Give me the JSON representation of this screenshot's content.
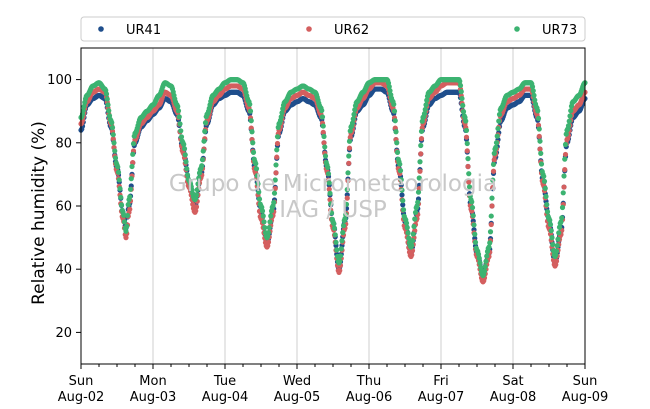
{
  "chart_data": {
    "type": "scatter",
    "title": "",
    "xlabel": "",
    "ylabel": "Relative humidity (%)",
    "ylim": [
      10,
      110
    ],
    "yticks": [
      20,
      40,
      60,
      80,
      100
    ],
    "xlim": [
      "2015-08-02 00:00",
      "2015-08-09 00:00"
    ],
    "xticks": [
      {
        "day": "Sun",
        "date": "Aug-02"
      },
      {
        "day": "Mon",
        "date": "Aug-03"
      },
      {
        "day": "Tue",
        "date": "Aug-04"
      },
      {
        "day": "Wed",
        "date": "Aug-05"
      },
      {
        "day": "Thu",
        "date": "Aug-06"
      },
      {
        "day": "Fri",
        "date": "Aug-07"
      },
      {
        "day": "Sat",
        "date": "Aug-08"
      },
      {
        "day": "Sun",
        "date": "Aug-09"
      }
    ],
    "grid": "vertical",
    "legend_position": "top",
    "watermark": [
      "Grupo de Micrometeorologia",
      "IAG / USP"
    ],
    "series": [
      {
        "name": "UR41",
        "color": "#1f4e8c",
        "points": [
          [
            "2015-08-02 00:00",
            84
          ],
          [
            "2015-08-02 02:00",
            92
          ],
          [
            "2015-08-02 04:00",
            94
          ],
          [
            "2015-08-02 06:00",
            95
          ],
          [
            "2015-08-02 08:00",
            94
          ],
          [
            "2015-08-02 10:00",
            85
          ],
          [
            "2015-08-02 12:00",
            72
          ],
          [
            "2015-08-02 14:00",
            58
          ],
          [
            "2015-08-02 15:00",
            53
          ],
          [
            "2015-08-02 16:00",
            60
          ],
          [
            "2015-08-02 18:00",
            80
          ],
          [
            "2015-08-02 20:00",
            85
          ],
          [
            "2015-08-02 22:00",
            87
          ],
          [
            "2015-08-03 00:00",
            89
          ],
          [
            "2015-08-03 02:00",
            91
          ],
          [
            "2015-08-03 04:00",
            94
          ],
          [
            "2015-08-03 06:00",
            93
          ],
          [
            "2015-08-03 08:00",
            89
          ],
          [
            "2015-08-03 10:00",
            78
          ],
          [
            "2015-08-03 12:00",
            68
          ],
          [
            "2015-08-03 14:00",
            60
          ],
          [
            "2015-08-03 16:00",
            70
          ],
          [
            "2015-08-03 18:00",
            86
          ],
          [
            "2015-08-03 20:00",
            92
          ],
          [
            "2015-08-03 22:00",
            94
          ],
          [
            "2015-08-04 00:00",
            95
          ],
          [
            "2015-08-04 02:00",
            96
          ],
          [
            "2015-08-04 04:00",
            96
          ],
          [
            "2015-08-04 06:00",
            95
          ],
          [
            "2015-08-04 08:00",
            90
          ],
          [
            "2015-08-04 10:00",
            72
          ],
          [
            "2015-08-04 12:00",
            58
          ],
          [
            "2015-08-04 14:00",
            48
          ],
          [
            "2015-08-04 16:00",
            58
          ],
          [
            "2015-08-04 18:00",
            83
          ],
          [
            "2015-08-04 20:00",
            90
          ],
          [
            "2015-08-04 22:00",
            92
          ],
          [
            "2015-08-05 00:00",
            93
          ],
          [
            "2015-08-05 02:00",
            94
          ],
          [
            "2015-08-05 04:00",
            93
          ],
          [
            "2015-08-05 06:00",
            92
          ],
          [
            "2015-08-05 08:00",
            88
          ],
          [
            "2015-08-05 10:00",
            72
          ],
          [
            "2015-08-05 12:00",
            55
          ],
          [
            "2015-08-05 14:00",
            40
          ],
          [
            "2015-08-05 16:00",
            55
          ],
          [
            "2015-08-05 18:00",
            82
          ],
          [
            "2015-08-05 20:00",
            90
          ],
          [
            "2015-08-05 22:00",
            92
          ],
          [
            "2015-08-06 00:00",
            95
          ],
          [
            "2015-08-06 02:00",
            97
          ],
          [
            "2015-08-06 04:00",
            97
          ],
          [
            "2015-08-06 06:00",
            96
          ],
          [
            "2015-08-06 08:00",
            90
          ],
          [
            "2015-08-06 10:00",
            72
          ],
          [
            "2015-08-06 12:00",
            55
          ],
          [
            "2015-08-06 14:00",
            45
          ],
          [
            "2015-08-06 16:00",
            58
          ],
          [
            "2015-08-06 18:00",
            85
          ],
          [
            "2015-08-06 20:00",
            92
          ],
          [
            "2015-08-06 22:00",
            94
          ],
          [
            "2015-08-07 00:00",
            95
          ],
          [
            "2015-08-07 02:00",
            96
          ],
          [
            "2015-08-07 04:00",
            96
          ],
          [
            "2015-08-07 06:00",
            96
          ],
          [
            "2015-08-07 08:00",
            85
          ],
          [
            "2015-08-07 10:00",
            60
          ],
          [
            "2015-08-07 12:00",
            45
          ],
          [
            "2015-08-07 14:00",
            38
          ],
          [
            "2015-08-07 16:00",
            45
          ],
          [
            "2015-08-07 18:00",
            75
          ],
          [
            "2015-08-07 20:00",
            87
          ],
          [
            "2015-08-07 22:00",
            91
          ],
          [
            "2015-08-08 00:00",
            92
          ],
          [
            "2015-08-08 02:00",
            93
          ],
          [
            "2015-08-08 04:00",
            95
          ],
          [
            "2015-08-08 06:00",
            95
          ],
          [
            "2015-08-08 08:00",
            88
          ],
          [
            "2015-08-08 10:00",
            68
          ],
          [
            "2015-08-08 12:00",
            55
          ],
          [
            "2015-08-08 14:00",
            42
          ],
          [
            "2015-08-08 16:00",
            52
          ],
          [
            "2015-08-08 18:00",
            80
          ],
          [
            "2015-08-08 20:00",
            88
          ],
          [
            "2015-08-08 22:00",
            90
          ],
          [
            "2015-08-09 00:00",
            94
          ]
        ]
      },
      {
        "name": "UR62",
        "color": "#d45f5f",
        "points": [
          [
            "2015-08-02 00:00",
            86
          ],
          [
            "2015-08-02 02:00",
            93
          ],
          [
            "2015-08-02 04:00",
            96
          ],
          [
            "2015-08-02 06:00",
            97
          ],
          [
            "2015-08-02 08:00",
            96
          ],
          [
            "2015-08-02 10:00",
            86
          ],
          [
            "2015-08-02 12:00",
            71
          ],
          [
            "2015-08-02 14:00",
            56
          ],
          [
            "2015-08-02 15:00",
            50
          ],
          [
            "2015-08-02 16:00",
            58
          ],
          [
            "2015-08-02 18:00",
            81
          ],
          [
            "2015-08-02 20:00",
            86
          ],
          [
            "2015-08-02 22:00",
            88
          ],
          [
            "2015-08-03 00:00",
            90
          ],
          [
            "2015-08-03 02:00",
            92
          ],
          [
            "2015-08-03 04:00",
            96
          ],
          [
            "2015-08-03 06:00",
            95
          ],
          [
            "2015-08-03 08:00",
            90
          ],
          [
            "2015-08-03 10:00",
            77
          ],
          [
            "2015-08-03 12:00",
            66
          ],
          [
            "2015-08-03 14:00",
            58
          ],
          [
            "2015-08-03 16:00",
            69
          ],
          [
            "2015-08-03 18:00",
            87
          ],
          [
            "2015-08-03 20:00",
            93
          ],
          [
            "2015-08-03 22:00",
            95
          ],
          [
            "2015-08-04 00:00",
            97
          ],
          [
            "2015-08-04 02:00",
            98
          ],
          [
            "2015-08-04 04:00",
            98
          ],
          [
            "2015-08-04 06:00",
            97
          ],
          [
            "2015-08-04 08:00",
            91
          ],
          [
            "2015-08-04 10:00",
            71
          ],
          [
            "2015-08-04 12:00",
            56
          ],
          [
            "2015-08-04 14:00",
            47
          ],
          [
            "2015-08-04 16:00",
            57
          ],
          [
            "2015-08-04 18:00",
            84
          ],
          [
            "2015-08-04 20:00",
            91
          ],
          [
            "2015-08-04 22:00",
            94
          ],
          [
            "2015-08-05 00:00",
            95
          ],
          [
            "2015-08-05 02:00",
            96
          ],
          [
            "2015-08-05 04:00",
            95
          ],
          [
            "2015-08-05 06:00",
            94
          ],
          [
            "2015-08-05 08:00",
            89
          ],
          [
            "2015-08-05 10:00",
            71
          ],
          [
            "2015-08-05 12:00",
            53
          ],
          [
            "2015-08-05 14:00",
            39
          ],
          [
            "2015-08-05 16:00",
            53
          ],
          [
            "2015-08-05 18:00",
            83
          ],
          [
            "2015-08-05 20:00",
            91
          ],
          [
            "2015-08-05 22:00",
            94
          ],
          [
            "2015-08-06 00:00",
            97
          ],
          [
            "2015-08-06 02:00",
            99
          ],
          [
            "2015-08-06 04:00",
            99
          ],
          [
            "2015-08-06 06:00",
            98
          ],
          [
            "2015-08-06 08:00",
            91
          ],
          [
            "2015-08-06 10:00",
            71
          ],
          [
            "2015-08-06 12:00",
            53
          ],
          [
            "2015-08-06 14:00",
            44
          ],
          [
            "2015-08-06 16:00",
            56
          ],
          [
            "2015-08-06 18:00",
            86
          ],
          [
            "2015-08-06 20:00",
            94
          ],
          [
            "2015-08-06 22:00",
            96
          ],
          [
            "2015-08-07 00:00",
            98
          ],
          [
            "2015-08-07 02:00",
            99
          ],
          [
            "2015-08-07 04:00",
            99
          ],
          [
            "2015-08-07 06:00",
            99
          ],
          [
            "2015-08-07 08:00",
            86
          ],
          [
            "2015-08-07 10:00",
            59
          ],
          [
            "2015-08-07 12:00",
            44
          ],
          [
            "2015-08-07 14:00",
            36
          ],
          [
            "2015-08-07 16:00",
            44
          ],
          [
            "2015-08-07 18:00",
            76
          ],
          [
            "2015-08-07 20:00",
            89
          ],
          [
            "2015-08-07 22:00",
            93
          ],
          [
            "2015-08-08 00:00",
            94
          ],
          [
            "2015-08-08 02:00",
            95
          ],
          [
            "2015-08-08 04:00",
            97
          ],
          [
            "2015-08-08 06:00",
            97
          ],
          [
            "2015-08-08 08:00",
            89
          ],
          [
            "2015-08-08 10:00",
            67
          ],
          [
            "2015-08-08 12:00",
            53
          ],
          [
            "2015-08-08 14:00",
            41
          ],
          [
            "2015-08-08 16:00",
            51
          ],
          [
            "2015-08-08 18:00",
            81
          ],
          [
            "2015-08-08 20:00",
            90
          ],
          [
            "2015-08-08 22:00",
            92
          ],
          [
            "2015-08-09 00:00",
            96
          ]
        ]
      },
      {
        "name": "UR73",
        "color": "#3cb371",
        "points": [
          [
            "2015-08-02 00:00",
            88
          ],
          [
            "2015-08-02 02:00",
            95
          ],
          [
            "2015-08-02 04:00",
            98
          ],
          [
            "2015-08-02 06:00",
            99
          ],
          [
            "2015-08-02 08:00",
            97
          ],
          [
            "2015-08-02 10:00",
            87
          ],
          [
            "2015-08-02 12:00",
            73
          ],
          [
            "2015-08-02 14:00",
            58
          ],
          [
            "2015-08-02 15:00",
            52
          ],
          [
            "2015-08-02 16:00",
            62
          ],
          [
            "2015-08-02 18:00",
            83
          ],
          [
            "2015-08-02 20:00",
            88
          ],
          [
            "2015-08-02 22:00",
            90
          ],
          [
            "2015-08-03 00:00",
            92
          ],
          [
            "2015-08-03 02:00",
            95
          ],
          [
            "2015-08-03 04:00",
            99
          ],
          [
            "2015-08-03 06:00",
            98
          ],
          [
            "2015-08-03 08:00",
            92
          ],
          [
            "2015-08-03 10:00",
            80
          ],
          [
            "2015-08-03 12:00",
            68
          ],
          [
            "2015-08-03 14:00",
            62
          ],
          [
            "2015-08-03 16:00",
            72
          ],
          [
            "2015-08-03 18:00",
            89
          ],
          [
            "2015-08-03 20:00",
            95
          ],
          [
            "2015-08-03 22:00",
            97
          ],
          [
            "2015-08-04 00:00",
            99
          ],
          [
            "2015-08-04 02:00",
            100
          ],
          [
            "2015-08-04 04:00",
            100
          ],
          [
            "2015-08-04 06:00",
            99
          ],
          [
            "2015-08-04 08:00",
            93
          ],
          [
            "2015-08-04 10:00",
            74
          ],
          [
            "2015-08-04 12:00",
            60
          ],
          [
            "2015-08-04 14:00",
            50
          ],
          [
            "2015-08-04 16:00",
            60
          ],
          [
            "2015-08-04 18:00",
            86
          ],
          [
            "2015-08-04 20:00",
            93
          ],
          [
            "2015-08-04 22:00",
            96
          ],
          [
            "2015-08-05 00:00",
            97
          ],
          [
            "2015-08-05 02:00",
            98
          ],
          [
            "2015-08-05 04:00",
            97
          ],
          [
            "2015-08-05 06:00",
            96
          ],
          [
            "2015-08-05 08:00",
            91
          ],
          [
            "2015-08-05 10:00",
            73
          ],
          [
            "2015-08-05 12:00",
            55
          ],
          [
            "2015-08-05 14:00",
            42
          ],
          [
            "2015-08-05 16:00",
            56
          ],
          [
            "2015-08-05 18:00",
            85
          ],
          [
            "2015-08-05 20:00",
            93
          ],
          [
            "2015-08-05 22:00",
            96
          ],
          [
            "2015-08-06 00:00",
            99
          ],
          [
            "2015-08-06 02:00",
            100
          ],
          [
            "2015-08-06 04:00",
            100
          ],
          [
            "2015-08-06 06:00",
            100
          ],
          [
            "2015-08-06 08:00",
            93
          ],
          [
            "2015-08-06 10:00",
            74
          ],
          [
            "2015-08-06 12:00",
            56
          ],
          [
            "2015-08-06 14:00",
            47
          ],
          [
            "2015-08-06 16:00",
            60
          ],
          [
            "2015-08-06 18:00",
            88
          ],
          [
            "2015-08-06 20:00",
            96
          ],
          [
            "2015-08-06 22:00",
            98
          ],
          [
            "2015-08-07 00:00",
            100
          ],
          [
            "2015-08-07 02:00",
            100
          ],
          [
            "2015-08-07 04:00",
            100
          ],
          [
            "2015-08-07 06:00",
            100
          ],
          [
            "2015-08-07 08:00",
            88
          ],
          [
            "2015-08-07 10:00",
            62
          ],
          [
            "2015-08-07 12:00",
            46
          ],
          [
            "2015-08-07 14:00",
            38
          ],
          [
            "2015-08-07 16:00",
            47
          ],
          [
            "2015-08-07 18:00",
            78
          ],
          [
            "2015-08-07 20:00",
            91
          ],
          [
            "2015-08-07 22:00",
            95
          ],
          [
            "2015-08-08 00:00",
            96
          ],
          [
            "2015-08-08 02:00",
            97
          ],
          [
            "2015-08-08 04:00",
            99
          ],
          [
            "2015-08-08 06:00",
            99
          ],
          [
            "2015-08-08 08:00",
            91
          ],
          [
            "2015-08-08 10:00",
            70
          ],
          [
            "2015-08-08 12:00",
            56
          ],
          [
            "2015-08-08 14:00",
            44
          ],
          [
            "2015-08-08 16:00",
            55
          ],
          [
            "2015-08-08 18:00",
            84
          ],
          [
            "2015-08-08 20:00",
            93
          ],
          [
            "2015-08-08 22:00",
            95
          ],
          [
            "2015-08-09 00:00",
            99
          ]
        ]
      }
    ]
  }
}
